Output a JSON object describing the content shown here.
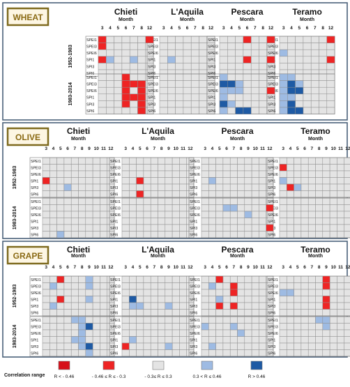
{
  "chart_data": {
    "type": "heatmap",
    "provinces": [
      "Chieti",
      "L'Aquila",
      "Pescara",
      "Teramo"
    ],
    "month_axis_label": "Month",
    "periods": [
      "1952-1983",
      "1983-2014"
    ],
    "indices": [
      "SPEI1",
      "SPEI3",
      "SPEI6",
      "SPI1",
      "SPI3",
      "SPI6"
    ],
    "colors": {
      "strong_neg": "#d6101a",
      "neg": "#ee2424",
      "neutral": "#e4e4e4",
      "pos": "#9ebbe3",
      "strong_pos": "#1e5aa4"
    },
    "legend": {
      "title": "Correlation range",
      "items": [
        {
          "key": "strong_neg",
          "label": "R < - 0.46"
        },
        {
          "key": "neg",
          "label": "- 0.46 ≤ R ≤ - 0.3"
        },
        {
          "key": "neutral",
          "label": "- 0.3≤ R ≤ 0.3"
        },
        {
          "key": "pos",
          "label": "0.3 < R ≤ 0.46"
        },
        {
          "key": "strong_pos",
          "label": "R > 0.46"
        }
      ]
    },
    "panels": [
      {
        "crop": "WHEAT",
        "months": [
          "3",
          "4",
          "5",
          "6",
          "7",
          "8",
          "12"
        ],
        "cells": [
          [
            "Chieti",
            0,
            0,
            0,
            "R"
          ],
          [
            "Chieti",
            0,
            0,
            6,
            "R"
          ],
          [
            "Chieti",
            0,
            1,
            0,
            "R"
          ],
          [
            "Chieti",
            0,
            3,
            0,
            "R"
          ],
          [
            "Chieti",
            0,
            3,
            1,
            "B"
          ],
          [
            "Chieti",
            0,
            3,
            4,
            "B"
          ],
          [
            "Chieti",
            1,
            0,
            3,
            "R"
          ],
          [
            "Chieti",
            1,
            1,
            3,
            "R"
          ],
          [
            "Chieti",
            1,
            1,
            4,
            "R"
          ],
          [
            "Chieti",
            1,
            1,
            5,
            "R"
          ],
          [
            "Chieti",
            1,
            2,
            3,
            "R"
          ],
          [
            "Chieti",
            1,
            2,
            5,
            "R"
          ],
          [
            "Chieti",
            1,
            3,
            3,
            "R"
          ],
          [
            "Chieti",
            1,
            3,
            4,
            "R"
          ],
          [
            "Chieti",
            1,
            3,
            5,
            "R"
          ],
          [
            "Chieti",
            1,
            4,
            3,
            "R"
          ],
          [
            "Chieti",
            1,
            4,
            5,
            "R"
          ],
          [
            "Chieti",
            1,
            5,
            5,
            "R"
          ],
          [
            "L'Aquila",
            0,
            3,
            1,
            "B"
          ],
          [
            "Pescara",
            0,
            0,
            3,
            "R"
          ],
          [
            "Pescara",
            0,
            0,
            6,
            "R"
          ],
          [
            "Pescara",
            0,
            3,
            3,
            "R"
          ],
          [
            "Pescara",
            0,
            3,
            6,
            "R"
          ],
          [
            "Pescara",
            1,
            0,
            0,
            "B"
          ],
          [
            "Pescara",
            1,
            1,
            0,
            "D"
          ],
          [
            "Pescara",
            1,
            1,
            1,
            "D"
          ],
          [
            "Pescara",
            1,
            1,
            2,
            "B"
          ],
          [
            "Pescara",
            1,
            2,
            0,
            "B"
          ],
          [
            "Pescara",
            1,
            2,
            1,
            "B"
          ],
          [
            "Pescara",
            1,
            2,
            2,
            "B"
          ],
          [
            "Pescara",
            1,
            2,
            6,
            "R"
          ],
          [
            "Pescara",
            1,
            3,
            0,
            "B"
          ],
          [
            "Pescara",
            1,
            4,
            0,
            "D"
          ],
          [
            "Pescara",
            1,
            4,
            1,
            "B"
          ],
          [
            "Pescara",
            1,
            5,
            0,
            "B"
          ],
          [
            "Pescara",
            1,
            5,
            2,
            "D"
          ],
          [
            "Pescara",
            1,
            5,
            3,
            "D"
          ],
          [
            "Teramo",
            0,
            0,
            6,
            "R"
          ],
          [
            "Teramo",
            0,
            2,
            0,
            "B"
          ],
          [
            "Teramo",
            0,
            3,
            6,
            "R"
          ],
          [
            "Teramo",
            1,
            0,
            0,
            "B"
          ],
          [
            "Teramo",
            1,
            0,
            1,
            "B"
          ],
          [
            "Teramo",
            1,
            1,
            0,
            "B"
          ],
          [
            "Teramo",
            1,
            1,
            1,
            "D"
          ],
          [
            "Teramo",
            1,
            1,
            2,
            "B"
          ],
          [
            "Teramo",
            1,
            2,
            0,
            "B"
          ],
          [
            "Teramo",
            1,
            2,
            1,
            "D"
          ],
          [
            "Teramo",
            1,
            2,
            2,
            "D"
          ],
          [
            "Teramo",
            1,
            3,
            0,
            "B"
          ],
          [
            "Teramo",
            1,
            3,
            1,
            "B"
          ],
          [
            "Teramo",
            1,
            4,
            0,
            "B"
          ],
          [
            "Teramo",
            1,
            4,
            1,
            "D"
          ],
          [
            "Teramo",
            1,
            5,
            0,
            "B"
          ],
          [
            "Teramo",
            1,
            5,
            1,
            "D"
          ],
          [
            "Teramo",
            1,
            5,
            2,
            "D"
          ]
        ]
      },
      {
        "crop": "OLIVE",
        "months": [
          "3",
          "4",
          "5",
          "6",
          "7",
          "8",
          "9",
          "10",
          "11",
          "12"
        ],
        "cells": [
          [
            "Chieti",
            0,
            3,
            0,
            "R"
          ],
          [
            "Chieti",
            0,
            4,
            3,
            "B"
          ],
          [
            "Chieti",
            1,
            5,
            2,
            "B"
          ],
          [
            "L'Aquila",
            0,
            3,
            2,
            "R"
          ],
          [
            "L'Aquila",
            0,
            5,
            2,
            "R"
          ],
          [
            "Pescara",
            0,
            3,
            1,
            "B"
          ],
          [
            "Pescara",
            1,
            1,
            3,
            "B"
          ],
          [
            "Pescara",
            1,
            1,
            4,
            "B"
          ],
          [
            "Pescara",
            1,
            1,
            9,
            "R"
          ],
          [
            "Pescara",
            1,
            2,
            6,
            "B"
          ],
          [
            "Pescara",
            1,
            4,
            9,
            "R"
          ],
          [
            "Teramo",
            0,
            1,
            0,
            "R"
          ],
          [
            "Teramo",
            0,
            3,
            0,
            "B"
          ],
          [
            "Teramo",
            0,
            4,
            1,
            "R"
          ],
          [
            "Teramo",
            0,
            4,
            2,
            "B"
          ]
        ]
      },
      {
        "crop": "GRAPE",
        "months": [
          "3",
          "4",
          "5",
          "6",
          "7",
          "8",
          "9",
          "10",
          "11",
          "12"
        ],
        "cells": [
          [
            "Chieti",
            0,
            0,
            2,
            "R"
          ],
          [
            "Chieti",
            0,
            0,
            6,
            "B"
          ],
          [
            "Chieti",
            0,
            1,
            1,
            "B"
          ],
          [
            "Chieti",
            0,
            1,
            6,
            "B"
          ],
          [
            "Chieti",
            0,
            3,
            2,
            "R"
          ],
          [
            "Chieti",
            0,
            3,
            6,
            "B"
          ],
          [
            "Chieti",
            0,
            4,
            1,
            "B"
          ],
          [
            "Chieti",
            1,
            0,
            4,
            "B"
          ],
          [
            "Chieti",
            1,
            0,
            5,
            "B"
          ],
          [
            "Chieti",
            1,
            1,
            5,
            "B"
          ],
          [
            "Chieti",
            1,
            1,
            6,
            "D"
          ],
          [
            "Chieti",
            1,
            2,
            5,
            "B"
          ],
          [
            "Chieti",
            1,
            3,
            4,
            "B"
          ],
          [
            "Chieti",
            1,
            3,
            5,
            "B"
          ],
          [
            "Chieti",
            1,
            4,
            5,
            "B"
          ],
          [
            "Chieti",
            1,
            4,
            6,
            "D"
          ],
          [
            "Chieti",
            1,
            5,
            6,
            "B"
          ],
          [
            "L'Aquila",
            0,
            3,
            1,
            "D"
          ],
          [
            "L'Aquila",
            0,
            4,
            1,
            "B"
          ],
          [
            "L'Aquila",
            0,
            4,
            2,
            "B"
          ],
          [
            "L'Aquila",
            0,
            4,
            6,
            "B"
          ],
          [
            "L'Aquila",
            1,
            3,
            1,
            "B"
          ],
          [
            "L'Aquila",
            1,
            4,
            0,
            "R"
          ],
          [
            "L'Aquila",
            1,
            4,
            6,
            "B"
          ],
          [
            "Pescara",
            0,
            0,
            2,
            "R"
          ],
          [
            "Pescara",
            0,
            1,
            1,
            "B"
          ],
          [
            "Pescara",
            0,
            1,
            4,
            "R"
          ],
          [
            "Pescara",
            0,
            2,
            4,
            "R"
          ],
          [
            "Pescara",
            0,
            3,
            2,
            "B"
          ],
          [
            "Pescara",
            0,
            4,
            2,
            "R"
          ],
          [
            "Pescara",
            0,
            4,
            4,
            "R"
          ],
          [
            "Pescara",
            1,
            1,
            0,
            "B"
          ],
          [
            "Pescara",
            1,
            1,
            4,
            "B"
          ],
          [
            "Pescara",
            1,
            2,
            5,
            "B"
          ],
          [
            "Pescara",
            1,
            4,
            1,
            "B"
          ],
          [
            "Teramo",
            0,
            0,
            6,
            "R"
          ],
          [
            "Teramo",
            0,
            1,
            6,
            "R"
          ],
          [
            "Teramo",
            0,
            2,
            0,
            "B"
          ],
          [
            "Teramo",
            0,
            2,
            1,
            "B"
          ],
          [
            "Teramo",
            0,
            3,
            6,
            "R"
          ],
          [
            "Teramo",
            0,
            4,
            6,
            "R"
          ],
          [
            "Teramo",
            1,
            0,
            5,
            "B"
          ],
          [
            "Teramo",
            1,
            0,
            6,
            "B"
          ],
          [
            "Teramo",
            1,
            1,
            6,
            "B"
          ]
        ]
      }
    ]
  }
}
